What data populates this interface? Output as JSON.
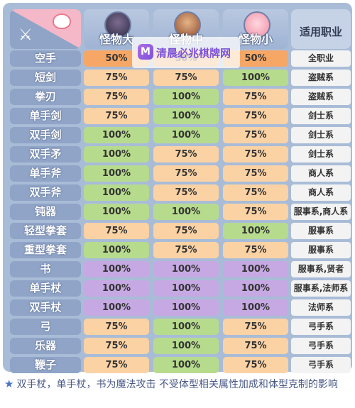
{
  "header": {
    "big_label": "怪物大",
    "mid_label": "怪物中",
    "small_label": "怪物小",
    "job_label": "适用职业"
  },
  "icons": {
    "corner_left": "crossed-swords-icon",
    "corner_right": "slime-icon",
    "watermark": "app-logo-icon"
  },
  "watermark": {
    "logo_text": "M",
    "text": "清晨必兆棋牌网"
  },
  "rows": [
    {
      "weapon": "空手",
      "big": "50%",
      "mid": "50%",
      "small": "50%",
      "job": "全职业",
      "c": [
        "od",
        "od",
        "od"
      ]
    },
    {
      "weapon": "短剑",
      "big": "75%",
      "mid": "75%",
      "small": "100%",
      "job": "盗贼系",
      "c": [
        "o",
        "o",
        "g"
      ]
    },
    {
      "weapon": "拳刃",
      "big": "75%",
      "mid": "100%",
      "small": "75%",
      "job": "盗贼系",
      "c": [
        "o",
        "g",
        "o"
      ]
    },
    {
      "weapon": "单手剑",
      "big": "75%",
      "mid": "100%",
      "small": "75%",
      "job": "剑士系",
      "c": [
        "o",
        "g",
        "o"
      ]
    },
    {
      "weapon": "双手剑",
      "big": "100%",
      "mid": "100%",
      "small": "75%",
      "job": "剑士系",
      "c": [
        "g",
        "g",
        "o"
      ]
    },
    {
      "weapon": "双手矛",
      "big": "100%",
      "mid": "75%",
      "small": "75%",
      "job": "剑士系",
      "c": [
        "g",
        "o",
        "o"
      ]
    },
    {
      "weapon": "单手斧",
      "big": "100%",
      "mid": "75%",
      "small": "75%",
      "job": "商人系",
      "c": [
        "g",
        "o",
        "o"
      ]
    },
    {
      "weapon": "双手斧",
      "big": "100%",
      "mid": "75%",
      "small": "75%",
      "job": "商人系",
      "c": [
        "g",
        "o",
        "o"
      ]
    },
    {
      "weapon": "钝器",
      "big": "100%",
      "mid": "100%",
      "small": "75%",
      "job": "服事系,商人系",
      "c": [
        "g",
        "g",
        "o"
      ]
    },
    {
      "weapon": "轻型拳套",
      "big": "75%",
      "mid": "75%",
      "small": "100%",
      "job": "服事系",
      "c": [
        "o",
        "o",
        "g"
      ]
    },
    {
      "weapon": "重型拳套",
      "big": "100%",
      "mid": "75%",
      "small": "75%",
      "job": "服事系",
      "c": [
        "g",
        "o",
        "o"
      ]
    },
    {
      "weapon": "书",
      "big": "100%",
      "mid": "100%",
      "small": "100%",
      "job": "服事系,贤者",
      "c": [
        "p",
        "p",
        "p"
      ]
    },
    {
      "weapon": "单手杖",
      "big": "100%",
      "mid": "100%",
      "small": "100%",
      "job": "服事系,法师系",
      "c": [
        "p",
        "p",
        "p"
      ]
    },
    {
      "weapon": "双手杖",
      "big": "100%",
      "mid": "100%",
      "small": "100%",
      "job": "法师系",
      "c": [
        "p",
        "p",
        "p"
      ]
    },
    {
      "weapon": "弓",
      "big": "75%",
      "mid": "100%",
      "small": "75%",
      "job": "弓手系",
      "c": [
        "o",
        "g",
        "o"
      ]
    },
    {
      "weapon": "乐器",
      "big": "75%",
      "mid": "100%",
      "small": "75%",
      "job": "弓手系",
      "c": [
        "o",
        "g",
        "o"
      ]
    },
    {
      "weapon": "鞭子",
      "big": "75%",
      "mid": "100%",
      "small": "75%",
      "job": "弓手系",
      "c": [
        "o",
        "g",
        "o"
      ]
    }
  ],
  "colors": {
    "od": "#f6a766",
    "o": "#fbd2a4",
    "g": "#b7db8d",
    "p": "#c6a9e3"
  },
  "footnote": {
    "star": "★",
    "text": "双手杖，单手杖，书为魔法攻击  不受体型相关属性加成和体型克制的影响"
  }
}
